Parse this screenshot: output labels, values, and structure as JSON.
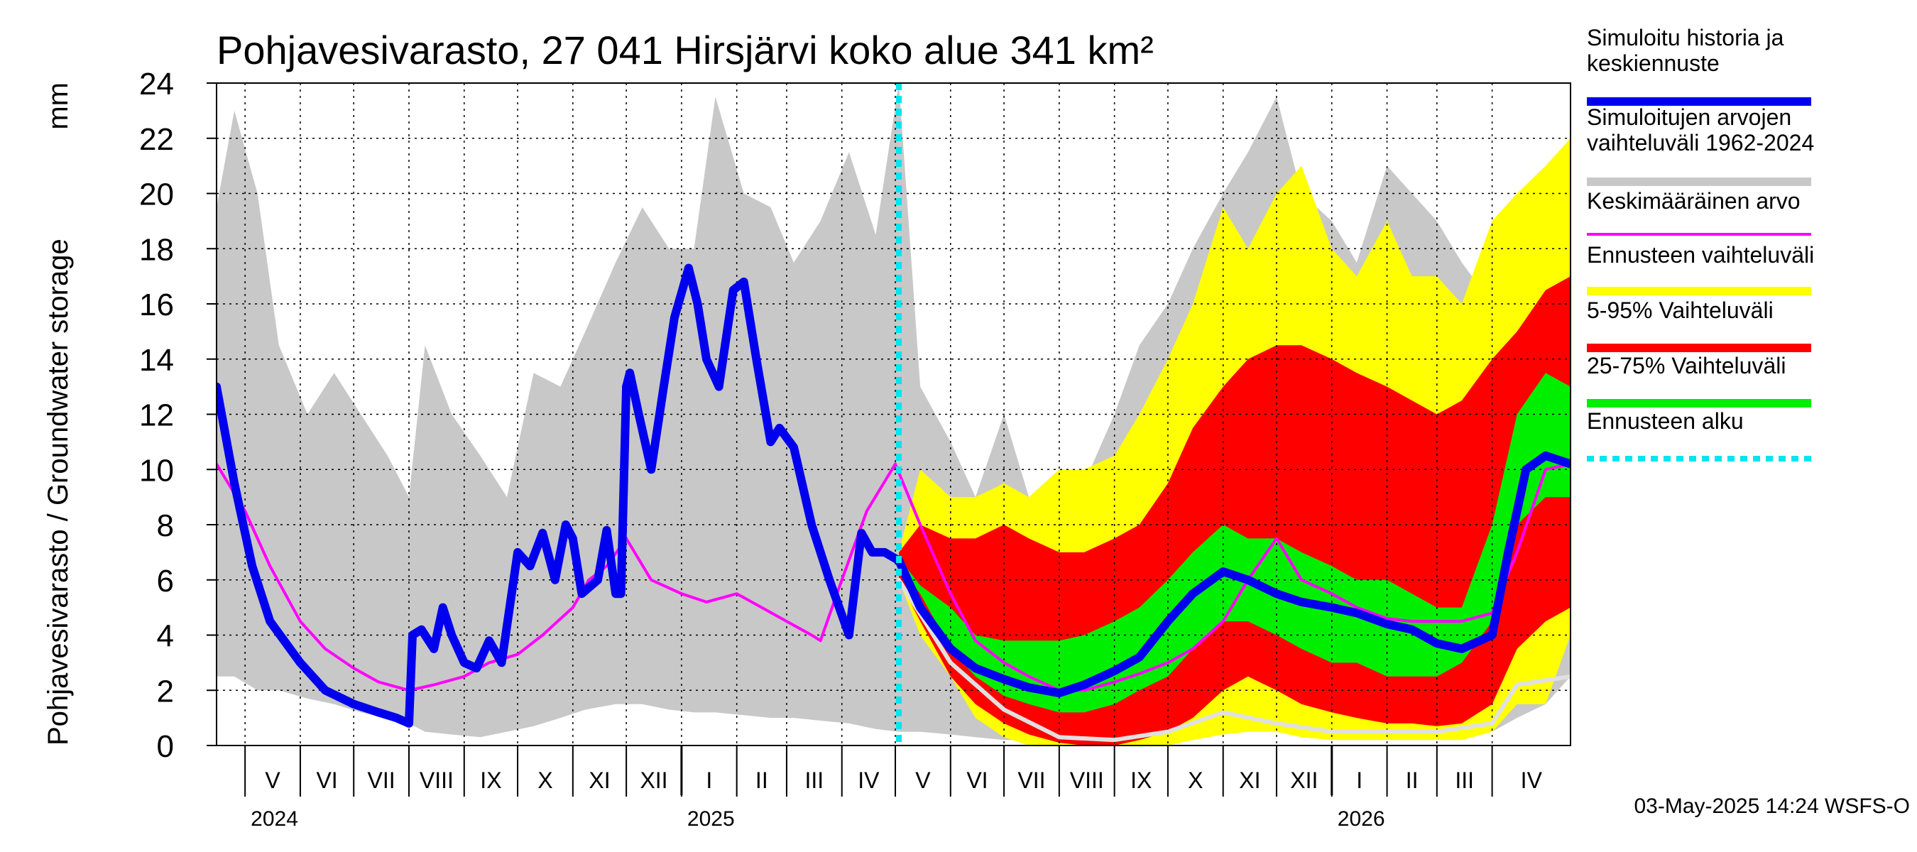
{
  "chart_data": {
    "type": "area",
    "title": "Pohjavesivarasto, 27 041 Hirsjärvi koko alue 341 km²",
    "ylabel": "Pohjavesivarasto / Groundwater storage",
    "yunit": "mm",
    "ylim": [
      0,
      24
    ],
    "yticks": [
      0,
      2,
      4,
      6,
      8,
      10,
      12,
      14,
      16,
      18,
      20,
      22,
      24
    ],
    "xlim": [
      "2024-04-15",
      "2026-05-15"
    ],
    "forecast_start": "2025-05-03",
    "grid": true,
    "legend_position": "right",
    "months": [
      {
        "label": "V",
        "start": "2024-05-01"
      },
      {
        "label": "VI",
        "start": "2024-06-01"
      },
      {
        "label": "VII",
        "start": "2024-07-01"
      },
      {
        "label": "VIII",
        "start": "2024-08-01"
      },
      {
        "label": "IX",
        "start": "2024-09-01"
      },
      {
        "label": "X",
        "start": "2024-10-01"
      },
      {
        "label": "XI",
        "start": "2024-11-01"
      },
      {
        "label": "XII",
        "start": "2024-12-01"
      },
      {
        "label": "I",
        "start": "2025-01-01"
      },
      {
        "label": "II",
        "start": "2025-02-01"
      },
      {
        "label": "III",
        "start": "2025-03-01"
      },
      {
        "label": "IV",
        "start": "2025-04-01"
      },
      {
        "label": "V",
        "start": "2025-05-01"
      },
      {
        "label": "VI",
        "start": "2025-06-01"
      },
      {
        "label": "VII",
        "start": "2025-07-01"
      },
      {
        "label": "VIII",
        "start": "2025-08-01"
      },
      {
        "label": "IX",
        "start": "2025-09-01"
      },
      {
        "label": "X",
        "start": "2025-10-01"
      },
      {
        "label": "XI",
        "start": "2025-11-01"
      },
      {
        "label": "XII",
        "start": "2025-12-01"
      },
      {
        "label": "I",
        "start": "2026-01-01"
      },
      {
        "label": "II",
        "start": "2026-02-01"
      },
      {
        "label": "III",
        "start": "2026-03-01"
      },
      {
        "label": "IV",
        "start": "2026-04-01"
      }
    ],
    "years": [
      {
        "label": "2024",
        "date": "2024-05-01"
      },
      {
        "label": "2025",
        "date": "2025-01-01"
      },
      {
        "label": "2026",
        "date": "2026-01-01"
      }
    ],
    "legend": [
      {
        "id": "sim",
        "label_lines": [
          "Simuloitu historia ja",
          "keskiennuste"
        ],
        "color": "#0000ee"
      },
      {
        "id": "hist_range",
        "label_lines": [
          "Simuloitujen arvojen",
          "vaihteluväli 1962-2024"
        ],
        "color": "#c8c8c8"
      },
      {
        "id": "mean",
        "label_lines": [
          "Keskimääräinen arvo"
        ],
        "color": "#ff00ff"
      },
      {
        "id": "fc_range",
        "label_lines": [
          "Ennusteen vaihteluväli"
        ],
        "color": "#ffff00"
      },
      {
        "id": "p5_95",
        "label_lines": [
          "5-95% Vaihteluväli"
        ],
        "color": "#ff0000"
      },
      {
        "id": "p25_75",
        "label_lines": [
          "25-75% Vaihteluväli"
        ],
        "color": "#00ee00"
      },
      {
        "id": "fc_start",
        "label_lines": [
          "Ennusteen alku"
        ],
        "color": "#00e5ee"
      }
    ],
    "series": {
      "hist_range": {
        "x": [
          "2024-04-15",
          "2024-04-25",
          "2024-05-08",
          "2024-05-20",
          "2024-06-05",
          "2024-06-20",
          "2024-07-05",
          "2024-07-20",
          "2024-08-01",
          "2024-08-10",
          "2024-08-25",
          "2024-09-10",
          "2024-09-25",
          "2024-10-10",
          "2024-10-25",
          "2024-11-08",
          "2024-11-25",
          "2024-12-10",
          "2024-12-25",
          "2025-01-08",
          "2025-01-20",
          "2025-02-05",
          "2025-02-20",
          "2025-03-05",
          "2025-03-20",
          "2025-04-05",
          "2025-04-20",
          "2025-05-03",
          "2025-05-15",
          "2025-06-01",
          "2025-06-15",
          "2025-07-01",
          "2025-07-15",
          "2025-08-01",
          "2025-08-15",
          "2025-09-01",
          "2025-09-15",
          "2025-10-01",
          "2025-10-15",
          "2025-11-01",
          "2025-11-15",
          "2025-12-01",
          "2025-12-15",
          "2026-01-01",
          "2026-01-15",
          "2026-02-01",
          "2026-02-15",
          "2026-03-01",
          "2026-03-15",
          "2026-04-01",
          "2026-04-15",
          "2026-05-01",
          "2026-05-15"
        ],
        "upper": [
          19.5,
          23,
          20,
          14.5,
          12,
          13.5,
          12,
          10.5,
          9,
          14.5,
          12,
          10.5,
          9,
          13.5,
          13,
          15,
          17.5,
          19.5,
          18,
          18,
          23.5,
          20,
          19.5,
          17.5,
          19,
          21.5,
          18.5,
          24,
          13,
          11,
          9,
          12,
          9,
          8,
          9.5,
          12,
          14.5,
          16,
          18,
          20,
          21.5,
          23.5,
          20,
          19,
          17.5,
          21,
          20,
          19,
          17.5,
          16,
          18,
          20,
          19.5
        ],
        "lower": [
          2.5,
          2.5,
          2,
          2,
          1.7,
          1.5,
          1.2,
          1,
          0.8,
          0.5,
          0.4,
          0.3,
          0.5,
          0.7,
          1,
          1.3,
          1.5,
          1.5,
          1.3,
          1.2,
          1.2,
          1.1,
          1,
          1,
          0.9,
          0.8,
          0.6,
          0.5,
          0.5,
          0.4,
          0.3,
          0.2,
          0.2,
          0.1,
          0.1,
          0.1,
          0.2,
          0.3,
          0.5,
          0.8,
          1,
          1.2,
          1,
          0.9,
          0.8,
          0.7,
          0.6,
          0.6,
          0.5,
          0.5,
          1,
          1.5,
          2.5
        ]
      },
      "fc_range": {
        "x": [
          "2025-05-03",
          "2025-05-15",
          "2025-06-01",
          "2025-06-15",
          "2025-07-01",
          "2025-07-15",
          "2025-08-01",
          "2025-08-15",
          "2025-09-01",
          "2025-09-15",
          "2025-10-01",
          "2025-10-15",
          "2025-11-01",
          "2025-11-15",
          "2025-12-01",
          "2025-12-15",
          "2026-01-01",
          "2026-01-15",
          "2026-02-01",
          "2026-02-15",
          "2026-03-01",
          "2026-03-15",
          "2026-04-01",
          "2026-04-15",
          "2026-05-01",
          "2026-05-15"
        ],
        "upper": [
          7,
          10,
          9,
          9,
          9.5,
          9,
          10,
          10,
          10.5,
          12,
          14,
          16,
          19.5,
          18,
          20,
          21,
          18,
          17,
          19,
          17,
          17,
          16,
          19,
          20,
          21,
          22
        ],
        "lower": [
          6,
          4,
          2.5,
          1,
          0.3,
          0,
          0,
          0,
          0,
          0,
          0,
          0.2,
          0.4,
          0.5,
          0.5,
          0.3,
          0.2,
          0.2,
          0.2,
          0.2,
          0.2,
          0.2,
          0.5,
          1.5,
          1.5,
          4
        ]
      },
      "p5_95": {
        "x": [
          "2025-05-03",
          "2025-05-15",
          "2025-06-01",
          "2025-06-15",
          "2025-07-01",
          "2025-07-15",
          "2025-08-01",
          "2025-08-15",
          "2025-09-01",
          "2025-09-15",
          "2025-10-01",
          "2025-10-15",
          "2025-11-01",
          "2025-11-15",
          "2025-12-01",
          "2025-12-15",
          "2026-01-01",
          "2026-01-15",
          "2026-02-01",
          "2026-02-15",
          "2026-03-01",
          "2026-03-15",
          "2026-04-01",
          "2026-04-15",
          "2026-05-01",
          "2026-05-15"
        ],
        "upper": [
          7,
          8,
          7.5,
          7.5,
          8,
          7.5,
          7,
          7,
          7.5,
          8,
          9.5,
          11.5,
          13,
          14,
          14.5,
          14.5,
          14,
          13.5,
          13,
          12.5,
          12,
          12.5,
          14,
          15,
          16.5,
          17
        ],
        "lower": [
          6,
          4.5,
          2.5,
          1.5,
          0.8,
          0.4,
          0.1,
          0,
          0,
          0.2,
          0.5,
          1,
          2,
          2.5,
          2,
          1.5,
          1.2,
          1,
          0.8,
          0.8,
          0.7,
          0.8,
          1.5,
          3.5,
          4.5,
          5
        ]
      },
      "p25_75": {
        "x": [
          "2025-05-03",
          "2025-05-15",
          "2025-06-01",
          "2025-06-15",
          "2025-07-01",
          "2025-07-15",
          "2025-08-01",
          "2025-08-15",
          "2025-09-01",
          "2025-09-15",
          "2025-10-01",
          "2025-10-15",
          "2025-11-01",
          "2025-11-15",
          "2025-12-01",
          "2025-12-15",
          "2026-01-01",
          "2026-01-15",
          "2026-02-01",
          "2026-02-15",
          "2026-03-01",
          "2026-03-15",
          "2026-04-01",
          "2026-04-15",
          "2026-05-01",
          "2026-05-15"
        ],
        "upper": [
          6.8,
          5.8,
          5,
          4,
          3.8,
          3.8,
          3.8,
          4,
          4.5,
          5,
          6,
          7,
          8,
          7.5,
          7.5,
          7,
          6.5,
          6,
          6,
          5.5,
          5,
          5,
          8,
          12,
          13.5,
          13
        ],
        "lower": [
          6.5,
          5.5,
          3.5,
          2.5,
          1.8,
          1.5,
          1.2,
          1.2,
          1.5,
          2,
          2.5,
          3.5,
          4.5,
          4.5,
          4,
          3.5,
          3,
          3,
          2.5,
          2.5,
          2.5,
          3,
          4.5,
          8,
          9,
          9
        ]
      },
      "mean": {
        "x": [
          "2024-04-15",
          "2024-05-01",
          "2024-05-15",
          "2024-06-01",
          "2024-06-15",
          "2024-07-01",
          "2024-07-15",
          "2024-08-01",
          "2024-08-15",
          "2024-09-01",
          "2024-09-15",
          "2024-10-01",
          "2024-10-15",
          "2024-11-01",
          "2024-11-10",
          "2024-11-20",
          "2024-12-01",
          "2024-12-15",
          "2025-01-01",
          "2025-01-15",
          "2025-02-01",
          "2025-02-15",
          "2025-03-01",
          "2025-03-15",
          "2025-03-20",
          "2025-04-01",
          "2025-04-15",
          "2025-05-01",
          "2025-05-15",
          "2025-06-01",
          "2025-06-15",
          "2025-07-01",
          "2025-07-15",
          "2025-08-01",
          "2025-08-15",
          "2025-09-01",
          "2025-09-15",
          "2025-10-01",
          "2025-10-15",
          "2025-11-01",
          "2025-11-15",
          "2025-12-01",
          "2025-12-15",
          "2026-01-01",
          "2026-01-15",
          "2026-02-01",
          "2026-02-15",
          "2026-03-01",
          "2026-03-15",
          "2026-04-01",
          "2026-04-15",
          "2026-05-01",
          "2026-05-15"
        ],
        "y": [
          10.2,
          8.5,
          6.5,
          4.5,
          3.5,
          2.8,
          2.3,
          2,
          2.2,
          2.5,
          3,
          3.3,
          4,
          5,
          6,
          6.5,
          7.5,
          6,
          5.5,
          5.2,
          5.5,
          5,
          4.5,
          4,
          3.8,
          6,
          8.5,
          10.2,
          8,
          5.5,
          3.8,
          3,
          2.5,
          2,
          2,
          2.3,
          2.6,
          3,
          3.5,
          4.5,
          6,
          7.5,
          6,
          5.5,
          5,
          4.6,
          4.5,
          4.5,
          4.5,
          4.8,
          7,
          10,
          10.2
        ]
      },
      "sim": {
        "x": [
          "2024-04-15",
          "2024-04-25",
          "2024-05-05",
          "2024-05-15",
          "2024-06-01",
          "2024-06-15",
          "2024-07-01",
          "2024-07-15",
          "2024-07-25",
          "2024-08-01",
          "2024-08-03",
          "2024-08-08",
          "2024-08-15",
          "2024-08-20",
          "2024-08-25",
          "2024-09-01",
          "2024-09-08",
          "2024-09-15",
          "2024-09-22",
          "2024-10-01",
          "2024-10-08",
          "2024-10-15",
          "2024-10-22",
          "2024-10-28",
          "2024-11-01",
          "2024-11-06",
          "2024-11-15",
          "2024-11-20",
          "2024-11-25",
          "2024-11-28",
          "2024-12-01",
          "2024-12-03",
          "2024-12-08",
          "2024-12-15",
          "2024-12-22",
          "2024-12-28",
          "2025-01-05",
          "2025-01-10",
          "2025-01-15",
          "2025-01-22",
          "2025-01-30",
          "2025-02-05",
          "2025-02-12",
          "2025-02-20",
          "2025-02-25",
          "2025-03-05",
          "2025-03-15",
          "2025-03-25",
          "2025-04-05",
          "2025-04-12",
          "2025-04-18",
          "2025-04-25",
          "2025-05-03",
          "2025-05-15",
          "2025-06-01",
          "2025-06-15",
          "2025-07-01",
          "2025-07-15",
          "2025-08-01",
          "2025-08-15",
          "2025-09-01",
          "2025-09-15",
          "2025-10-01",
          "2025-10-15",
          "2025-11-01",
          "2025-11-15",
          "2025-12-01",
          "2025-12-15",
          "2026-01-01",
          "2026-01-15",
          "2026-02-01",
          "2026-02-15",
          "2026-03-01",
          "2026-03-15",
          "2026-04-01",
          "2026-04-10",
          "2026-04-20",
          "2026-05-01",
          "2026-05-15"
        ],
        "y": [
          13,
          9.5,
          6.5,
          4.5,
          3,
          2,
          1.5,
          1.2,
          1,
          0.8,
          4,
          4.2,
          3.5,
          5,
          4,
          3,
          2.8,
          3.8,
          3,
          7,
          6.5,
          7.7,
          6,
          8,
          7.5,
          5.5,
          6,
          7.8,
          5.5,
          5.5,
          13,
          13.5,
          12,
          10,
          13,
          15.5,
          17.3,
          16,
          14,
          13,
          16.5,
          16.8,
          14,
          11,
          11.5,
          10.8,
          8,
          6,
          4,
          7.7,
          7,
          7,
          6.7,
          5,
          3.5,
          2.8,
          2.4,
          2.1,
          1.9,
          2.2,
          2.7,
          3.2,
          4.5,
          5.5,
          6.3,
          6,
          5.5,
          5.2,
          5,
          4.8,
          4.4,
          4.2,
          3.7,
          3.5,
          4,
          7,
          10,
          10.5,
          10.2
        ]
      },
      "sim_lower_light": {
        "x": [
          "2025-05-03",
          "2025-06-01",
          "2025-07-01",
          "2025-08-01",
          "2025-09-01",
          "2025-10-01",
          "2025-11-01",
          "2025-12-01",
          "2026-01-01",
          "2026-02-01",
          "2026-03-01",
          "2026-04-01",
          "2026-04-15",
          "2026-05-15"
        ],
        "y": [
          6,
          3,
          1.3,
          0.3,
          0.2,
          0.5,
          1.2,
          0.8,
          0.5,
          0.5,
          0.5,
          0.8,
          2.2,
          2.5
        ]
      }
    }
  },
  "footer": {
    "timestamp": "03-May-2025 14:24 WSFS-O"
  }
}
